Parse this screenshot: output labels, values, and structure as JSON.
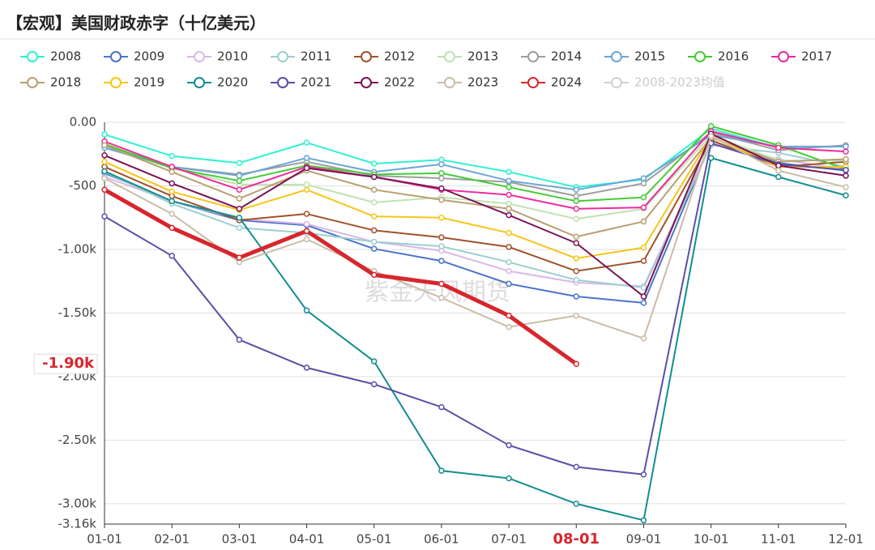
{
  "chart_data": {
    "type": "line",
    "title": "【宏观】美国财政赤字（十亿美元）",
    "watermark": "紫金天风期货",
    "categories": [
      "01-01",
      "02-01",
      "03-01",
      "04-01",
      "05-01",
      "06-01",
      "07-01",
      "08-01",
      "09-01",
      "10-01",
      "11-01",
      "12-01"
    ],
    "highlight_category": 7,
    "pointer_label": {
      "value": -1900,
      "label": "-1.90k"
    },
    "ylim": [
      -3160,
      0
    ],
    "yticks": [
      {
        "value": 0,
        "label": "0.00"
      },
      -500,
      {
        "value": -1000,
        "label": "-1.00k"
      },
      {
        "value": -1500,
        "label": "-1.50k"
      },
      {
        "value": -2000,
        "label": "-2.00k"
      },
      {
        "value": -2500,
        "label": "-2.50k"
      },
      {
        "value": -3000,
        "label": "-3.00k"
      },
      {
        "value": -3160,
        "label": "-3.16k"
      }
    ],
    "grid": true,
    "legend": "top",
    "series": [
      {
        "name": "2008",
        "color": "#2ef2cf",
        "values": [
          -95,
          -265,
          -320,
          -160,
          -325,
          -295,
          -390,
          -510,
          -450,
          -50,
          -200,
          -190
        ]
      },
      {
        "name": "2009",
        "color": "#4a74c9",
        "values": [
          -400,
          -620,
          -770,
          -810,
          -995,
          -1090,
          -1270,
          -1370,
          -1420,
          -160,
          -320,
          -380
        ]
      },
      {
        "name": "2010",
        "color": "#d8b7e8",
        "values": [
          -430,
          -620,
          -760,
          -800,
          -940,
          -1010,
          -1170,
          -1260,
          -1290,
          -160,
          -290,
          -370
        ]
      },
      {
        "name": "2011",
        "color": "#9ccfd0",
        "values": [
          -390,
          -640,
          -830,
          -870,
          -940,
          -975,
          -1100,
          -1240,
          -1300,
          -180,
          -240,
          -350
        ]
      },
      {
        "name": "2012",
        "color": "#a0522d",
        "values": [
          -350,
          -580,
          -770,
          -720,
          -850,
          -905,
          -980,
          -1170,
          -1090,
          -140,
          -350,
          -310
        ]
      },
      {
        "name": "2013",
        "color": "#bfe2b0",
        "values": [
          -200,
          -360,
          -490,
          -490,
          -630,
          -590,
          -640,
          -760,
          -680,
          -100,
          -300,
          -300
        ]
      },
      {
        "name": "2014",
        "color": "#9e9e9e",
        "values": [
          -180,
          -350,
          -410,
          -310,
          -420,
          -440,
          -470,
          -580,
          -480,
          -80,
          -220,
          -180
        ]
      },
      {
        "name": "2015",
        "color": "#6aa5d8",
        "values": [
          -200,
          -350,
          -420,
          -280,
          -390,
          -330,
          -460,
          -530,
          -440,
          -100,
          -190,
          -190
        ]
      },
      {
        "name": "2016",
        "color": "#44cc33",
        "values": [
          -170,
          -360,
          -460,
          -340,
          -410,
          -400,
          -510,
          -620,
          -590,
          -30,
          -180,
          -370
        ]
      },
      {
        "name": "2017",
        "color": "#ee2a9c",
        "values": [
          -150,
          -350,
          -530,
          -350,
          -430,
          -530,
          -570,
          -680,
          -670,
          -70,
          -200,
          -230
        ]
      },
      {
        "name": "2018",
        "color": "#b8a070",
        "values": [
          -180,
          -390,
          -600,
          -380,
          -530,
          -610,
          -680,
          -900,
          -780,
          -120,
          -310,
          -290
        ]
      },
      {
        "name": "2019",
        "color": "#f5c518",
        "values": [
          -310,
          -545,
          -690,
          -530,
          -740,
          -750,
          -870,
          -1070,
          -985,
          -110,
          -350,
          -350
        ]
      },
      {
        "name": "2020",
        "color": "#138d8f",
        "values": [
          -385,
          -620,
          -750,
          -1480,
          -1880,
          -2740,
          -2800,
          -3000,
          -3130,
          -280,
          -430,
          -575
        ]
      },
      {
        "name": "2021",
        "color": "#5b4ea8",
        "values": [
          -740,
          -1050,
          -1710,
          -1930,
          -2060,
          -2240,
          -2540,
          -2710,
          -2770,
          -165,
          -330,
          -375
        ]
      },
      {
        "name": "2022",
        "color": "#7b1455",
        "values": [
          -260,
          -480,
          -680,
          -360,
          -430,
          -520,
          -730,
          -950,
          -1370,
          -90,
          -340,
          -420
        ]
      },
      {
        "name": "2023",
        "color": "#cbbca8",
        "values": [
          -440,
          -720,
          -1100,
          -920,
          -1170,
          -1380,
          -1610,
          -1520,
          -1700,
          -110,
          -380,
          -510
        ]
      },
      {
        "name": "2024",
        "color": "#d7262d",
        "values": [
          -530,
          -830,
          -1065,
          -855,
          -1200,
          -1270,
          -1520,
          -1900,
          null,
          null,
          null,
          null
        ]
      }
    ],
    "hidden_legend": {
      "name": "2008-2023均值",
      "color": "#d0d0d0"
    }
  }
}
